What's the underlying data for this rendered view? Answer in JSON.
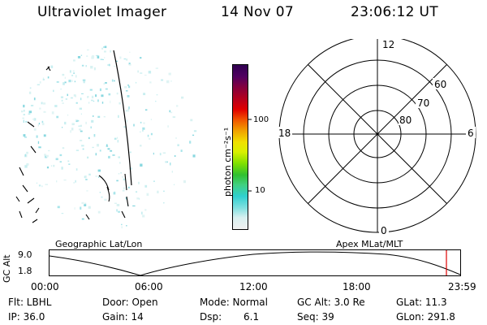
{
  "header": {
    "instrument": "Ultraviolet Imager",
    "date": "14 Nov 07",
    "time": "23:06:12 UT"
  },
  "colorbar": {
    "unit_label": "photon cm⁻²s⁻¹",
    "ticks": [
      "100",
      "10"
    ],
    "colors": [
      "#f0f0f0",
      "#d8f0f0",
      "#80e0e0",
      "#30d0d0",
      "#40d080",
      "#30c030",
      "#80e000",
      "#d8f000",
      "#f0e000",
      "#f0a000",
      "#f05000",
      "#e00000",
      "#b00020",
      "#800040",
      "#500060",
      "#300050"
    ]
  },
  "polar_plot": {
    "mlt_labels": {
      "top": "12",
      "left": "18",
      "right": "6",
      "bottom": "0"
    },
    "lat_labels": [
      "60",
      "70",
      "80"
    ]
  },
  "timeline": {
    "left_label": "Geographic Lat/Lon",
    "right_label": "Apex MLat/MLT",
    "y_axis_label": "GC Alt",
    "y_ticks": [
      "9.0",
      "1.8"
    ],
    "x_ticks": [
      "00:00",
      "06:00",
      "12:00",
      "18:00",
      "23:59"
    ],
    "marker_color": "#e00000"
  },
  "info": {
    "row1": {
      "filter": "Flt: LBHL",
      "door": "Door: Open",
      "mode": "Mode: Normal",
      "gc_alt": "GC Alt: 3.0 Re",
      "glat": "GLat:  11.3"
    },
    "row2": {
      "ip": "IP: 36.0",
      "gain": "Gain: 14",
      "dsp_label": "Dsp:",
      "dsp_value": "6.1",
      "seq": "Seq: 39",
      "glon": "GLon: 291.8"
    }
  }
}
